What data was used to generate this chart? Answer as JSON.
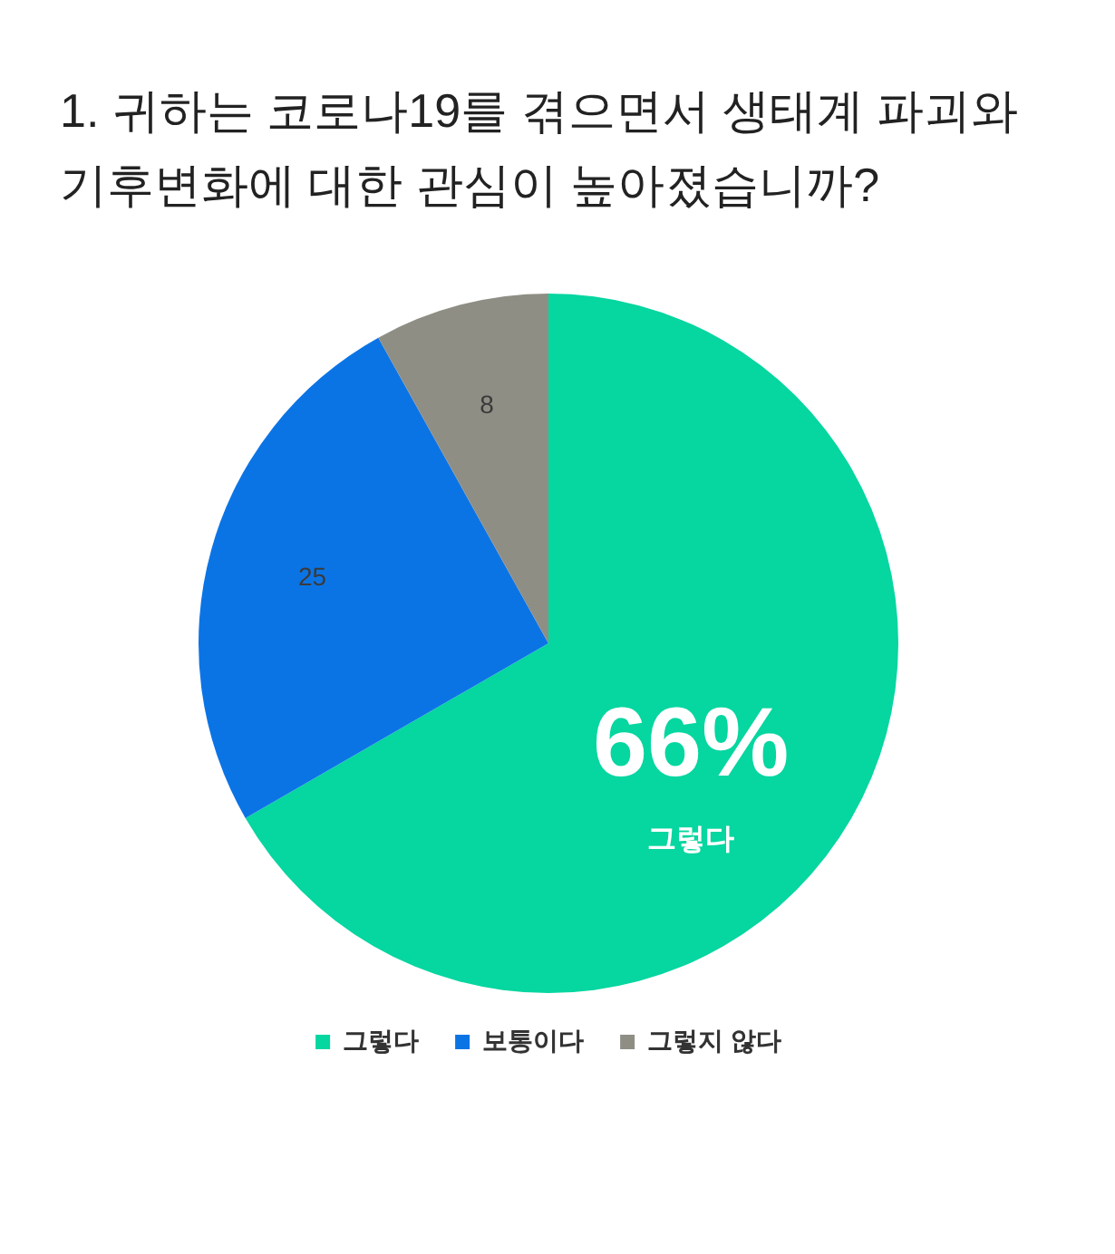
{
  "chart_data": {
    "type": "pie",
    "title": "1. 귀하는 코로나19를 겪으면서 생태계 파괴와 기후변화에 대한 관심이 높아졌습니까?",
    "categories": [
      "그렇다",
      "보통이다",
      "그렇지 않다"
    ],
    "values": [
      66,
      25,
      8
    ],
    "colors": [
      "#06d6a0",
      "#0b74e5",
      "#8f8e85"
    ],
    "value_labels": [
      "66%",
      "25",
      "8"
    ],
    "legend": "bottom"
  }
}
